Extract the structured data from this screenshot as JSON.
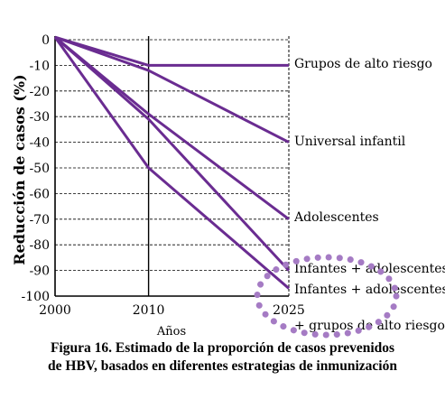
{
  "chart_data": {
    "type": "line",
    "title": "",
    "xlabel": "Años",
    "ylabel": "Reducción de casos (%)",
    "x": [
      2000,
      2010,
      2025
    ],
    "x_ticks": [
      "2000",
      "2010",
      "2025"
    ],
    "ylim": [
      -100,
      0
    ],
    "y_ticks": [
      "0",
      "-10",
      "-20",
      "-30",
      "-40",
      "-50",
      "-60",
      "-70",
      "-80",
      "-90",
      "-100"
    ],
    "grid": "horizontal dashed",
    "series": [
      {
        "name": "Grupos de alto riesgo",
        "values": [
          1,
          -10,
          -10
        ]
      },
      {
        "name": "Universal infantil",
        "values": [
          1,
          -12,
          -40
        ]
      },
      {
        "name": "Adolescentes",
        "values": [
          1,
          -29,
          -70
        ]
      },
      {
        "name": "Infantes + adolescentes",
        "values": [
          1,
          -31,
          -90
        ]
      },
      {
        "name": "Infantes + adolescentes + grupos de alto riesgo",
        "values": [
          1,
          -50,
          -97
        ]
      }
    ],
    "label_lines": [
      [
        "Grupos de alto riesgo"
      ],
      [
        "Universal infantil"
      ],
      [
        "Adolescentes"
      ],
      [
        "Infantes + adolescentes"
      ],
      [
        "Infantes + adolescentes",
        "+ grupos de alto riesgo"
      ]
    ],
    "colors": {
      "line": "#6a2c91",
      "highlight": "#a57bc4"
    }
  },
  "caption": {
    "line1": "Figura 16.  Estimado de la proporción de casos prevenidos",
    "line2": "de HBV, basados en diferentes estrategias de inmunización"
  }
}
